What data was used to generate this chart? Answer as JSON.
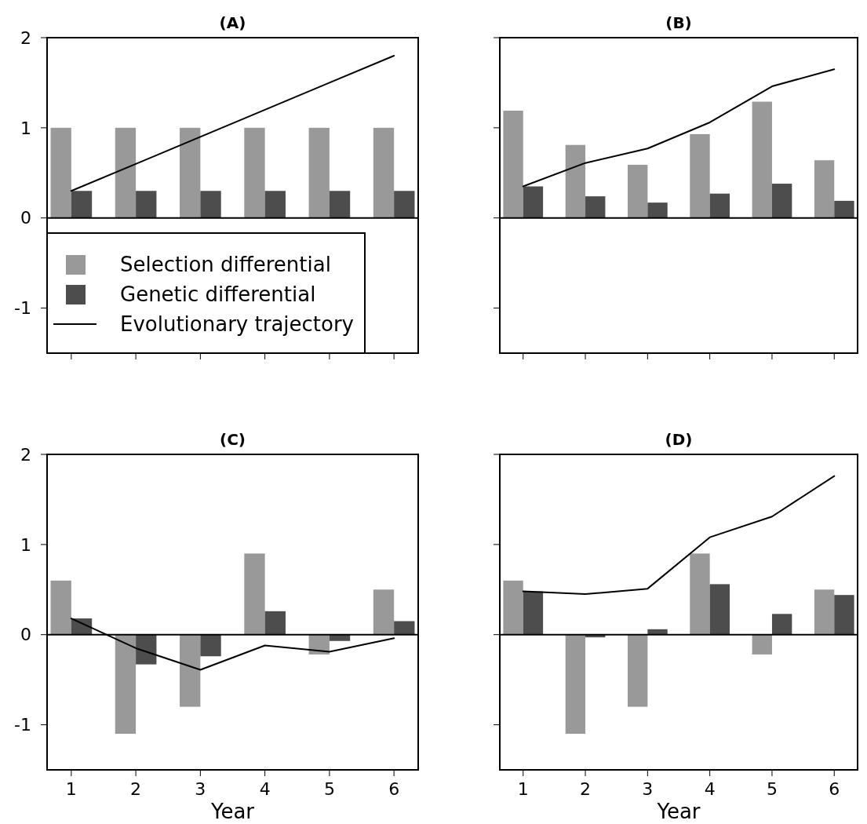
{
  "chart_data": [
    {
      "type": "bar",
      "title": "(A)",
      "categories": [
        "1",
        "2",
        "3",
        "4",
        "5",
        "6"
      ],
      "ylim": [
        -1.5,
        2
      ],
      "yticks": [
        -1,
        0,
        1,
        2
      ],
      "tick_labels": "y",
      "legend": "bottom left",
      "ref_lines": [
        {
          "axis": "y",
          "value": 0
        }
      ],
      "series": [
        {
          "name": "Selection differential",
          "color": "#999999",
          "values": [
            1,
            1,
            1,
            1,
            1,
            1
          ]
        },
        {
          "name": "Genetic differential",
          "color": "#4d4d4d",
          "values": [
            0.3,
            0.3,
            0.3,
            0.3,
            0.3,
            0.3
          ]
        },
        {
          "name": "Evolutionary trajectory",
          "type": "line",
          "color": "#000000",
          "values": [
            0.3,
            0.6,
            0.9,
            1.2,
            1.5,
            1.8
          ]
        }
      ]
    },
    {
      "type": "bar",
      "title": "(B)",
      "categories": [
        "1",
        "2",
        "3",
        "4",
        "5",
        "6"
      ],
      "ylim": [
        -1.5,
        2
      ],
      "yticks": [
        -1,
        0,
        1,
        2
      ],
      "tick_labels": false,
      "ref_lines": [
        {
          "axis": "y",
          "value": 0
        }
      ],
      "series": [
        {
          "color": "#999999",
          "values": [
            1.19,
            0.81,
            0.59,
            0.93,
            1.29,
            0.64
          ]
        },
        {
          "color": "#4d4d4d",
          "values": [
            0.35,
            0.24,
            0.17,
            0.27,
            0.38,
            0.19
          ]
        },
        {
          "type": "line",
          "color": "#000000",
          "values": [
            0.35,
            0.61,
            0.77,
            1.06,
            1.46,
            1.65
          ]
        }
      ]
    },
    {
      "type": "bar",
      "title": "(C)",
      "xlabel": "Year",
      "categories": [
        "1",
        "2",
        "3",
        "4",
        "5",
        "6"
      ],
      "ylim": [
        -1.5,
        2
      ],
      "yticks": [
        -1,
        0,
        1,
        2
      ],
      "ref_lines": [
        {
          "axis": "y",
          "value": 0
        }
      ],
      "series": [
        {
          "color": "#999999",
          "values": [
            0.6,
            -1.1,
            -0.8,
            0.9,
            -0.22,
            0.5
          ]
        },
        {
          "color": "#4d4d4d",
          "values": [
            0.18,
            -0.33,
            -0.24,
            0.26,
            -0.07,
            0.15
          ]
        },
        {
          "type": "line",
          "color": "#000000",
          "values": [
            0.18,
            -0.15,
            -0.39,
            -0.12,
            -0.19,
            -0.04
          ]
        }
      ]
    },
    {
      "type": "bar",
      "title": "(D)",
      "xlabel": "Year",
      "categories": [
        "1",
        "2",
        "3",
        "4",
        "5",
        "6"
      ],
      "ylim": [
        -1.5,
        2
      ],
      "yticks": [
        -1,
        0,
        1,
        2
      ],
      "tick_labels": "x",
      "ref_lines": [
        {
          "axis": "y",
          "value": 0
        }
      ],
      "series": [
        {
          "color": "#999999",
          "values": [
            0.6,
            -1.1,
            -0.8,
            0.9,
            -0.22,
            0.5
          ]
        },
        {
          "color": "#4d4d4d",
          "values": [
            0.48,
            -0.03,
            0.06,
            0.56,
            0.23,
            0.44
          ]
        },
        {
          "type": "line",
          "color": "#000000",
          "values": [
            0.48,
            0.45,
            0.51,
            1.08,
            1.31,
            1.76
          ]
        }
      ]
    }
  ]
}
